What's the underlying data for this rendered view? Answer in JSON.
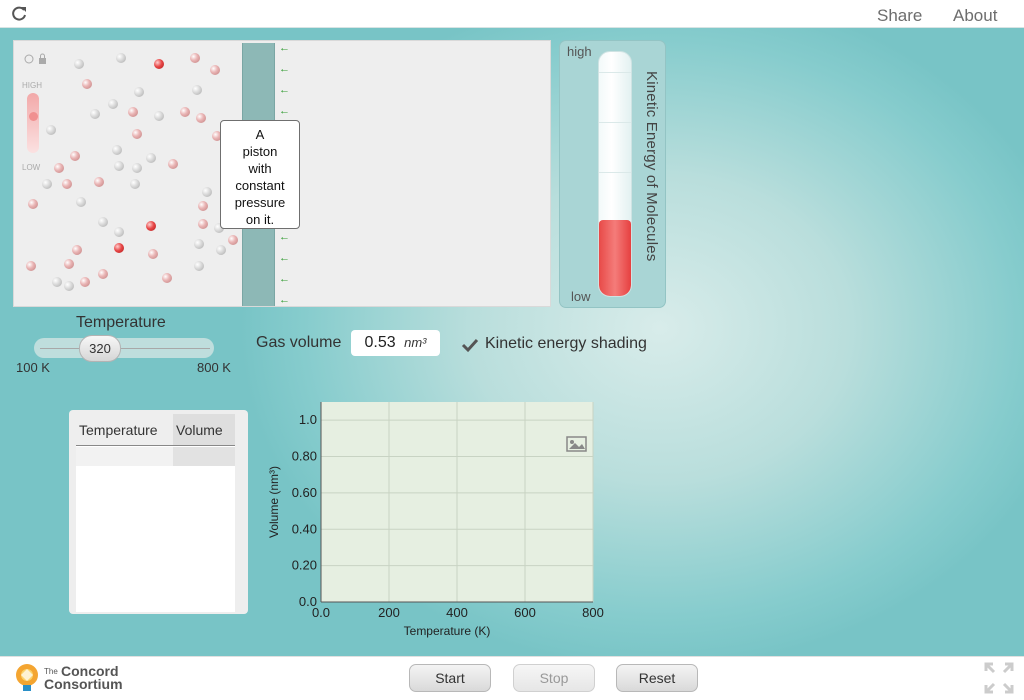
{
  "topbar": {
    "share": "Share",
    "about": "About"
  },
  "simulation": {
    "piston_tooltip": [
      "A",
      "piston",
      "with",
      "constant",
      "pressure",
      "on it."
    ],
    "mini_thermometer": {
      "high": "HIGH",
      "low": "LOW"
    }
  },
  "kinetic_energy": {
    "title": "Kinetic Energy of Molecules",
    "high_label": "high",
    "low_label": "low",
    "level": 0.31,
    "colors": {
      "fill": "#e84a48"
    }
  },
  "temperature": {
    "label": "Temperature",
    "value": "320",
    "min_label": "100 K",
    "max_label": "800 K"
  },
  "gas_volume": {
    "label": "Gas volume",
    "value": "0.53",
    "unit": "nm³"
  },
  "ke_shading": {
    "label": "Kinetic energy shading",
    "checked": true
  },
  "table": {
    "headers": [
      "Temperature",
      "Volume"
    ],
    "rows": []
  },
  "chart_data": {
    "type": "scatter",
    "xlabel": "Temperature (K)",
    "ylabel": "Volume (nm³)",
    "xlim": [
      0,
      800
    ],
    "ylim": [
      0,
      1.1
    ],
    "x_ticks": [
      "0.0",
      "200",
      "400",
      "600",
      "800"
    ],
    "y_ticks": [
      "0.0",
      "0.20",
      "0.40",
      "0.60",
      "0.80",
      "1.0"
    ],
    "grid": true,
    "points": []
  },
  "footer": {
    "logo_the": "The",
    "logo_concord": "Concord",
    "logo_consortium": "Consortium",
    "start": "Start",
    "stop": "Stop",
    "reset": "Reset"
  },
  "colors": {
    "background_teal": "#7dc8c9",
    "graph_bg": "#e6efe1"
  }
}
